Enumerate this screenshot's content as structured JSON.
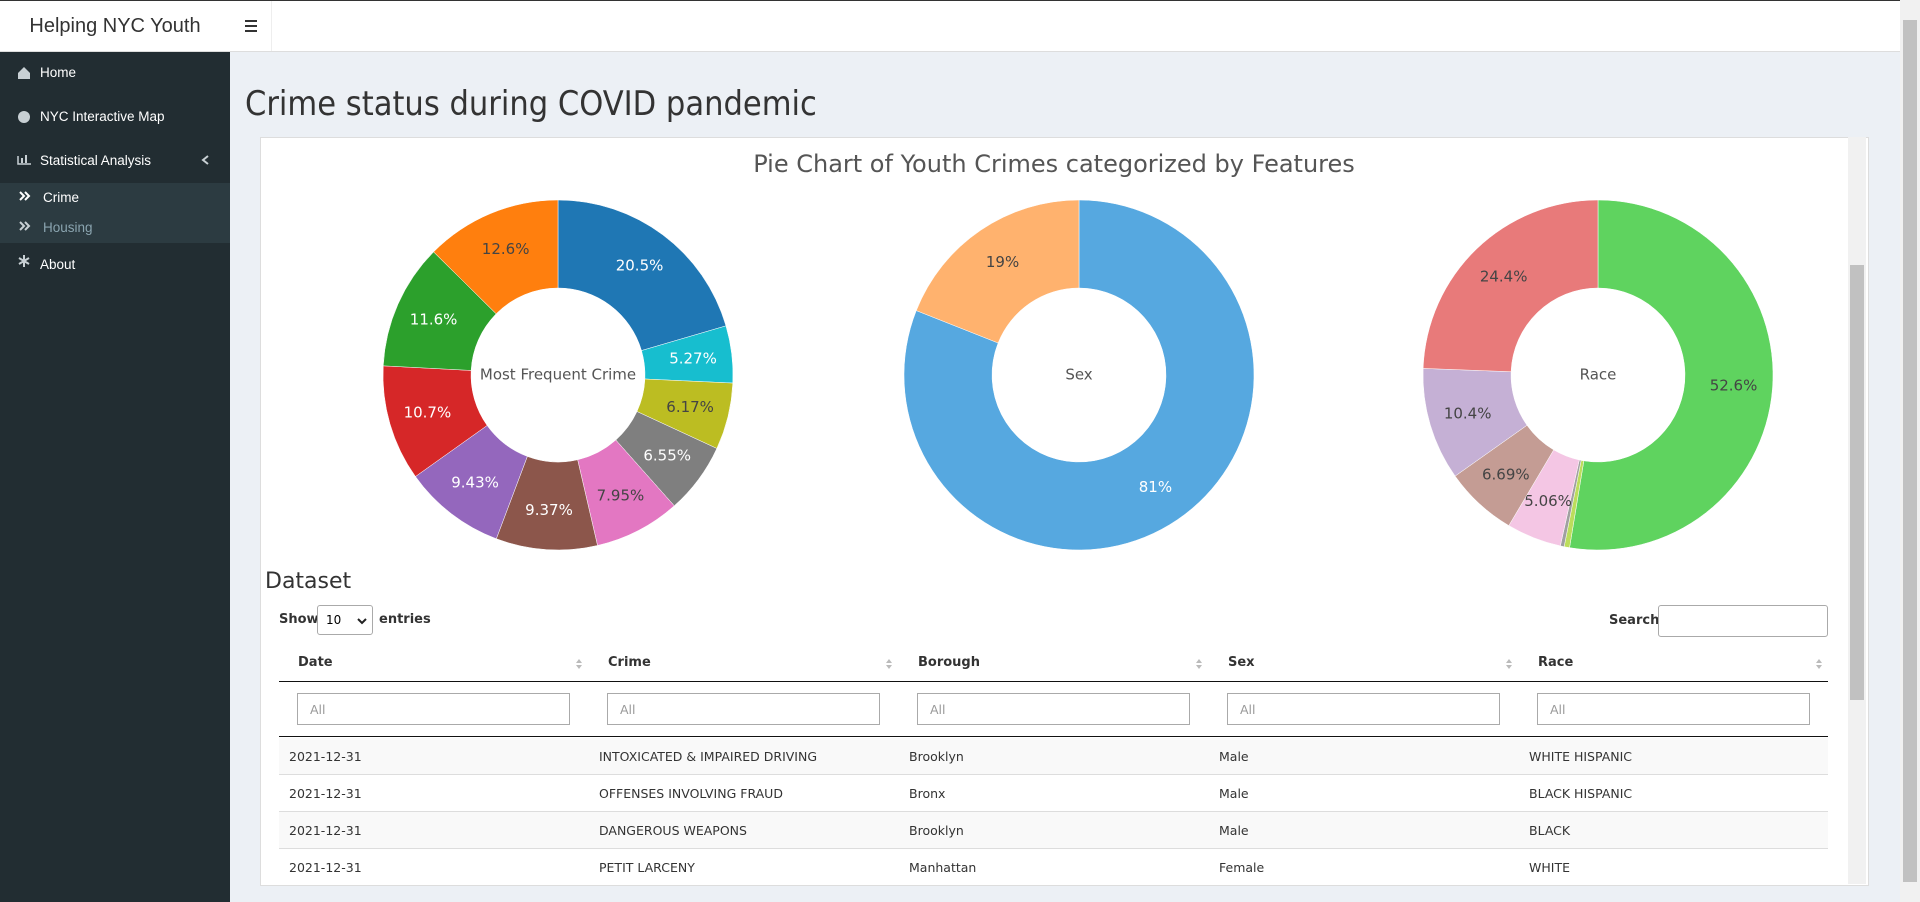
{
  "header": {
    "brand": "Helping NYC Youth"
  },
  "sidebar": {
    "items": [
      "Home",
      "NYC Interactive Map",
      "Statistical Analysis",
      "About"
    ],
    "subitems": [
      "Crime",
      "Housing"
    ]
  },
  "page": {
    "title": "Crime status during COVID pandemic"
  },
  "chart_data": [
    {
      "type": "pie",
      "title": "Pie Chart of Youth Crimes categorized by Features",
      "hole_label": "Most Frequent Crime",
      "values": [
        20.5,
        5.27,
        6.17,
        6.55,
        7.95,
        9.37,
        9.43,
        10.7,
        11.6,
        12.6
      ],
      "value_labels": [
        "20.5%",
        "5.27%",
        "6.17%",
        "6.55%",
        "7.95%",
        "9.37%",
        "9.43%",
        "10.7%",
        "11.6%",
        "12.6%"
      ],
      "colors": [
        "#1f77b4",
        "#17becf",
        "#bcbd22",
        "#7f7f7f",
        "#e377c2",
        "#8c564b",
        "#9467bd",
        "#d62728",
        "#2ca02c",
        "#ff7f0e"
      ]
    },
    {
      "type": "pie",
      "hole_label": "Sex",
      "values": [
        81,
        19
      ],
      "value_labels": [
        "81%",
        "19%"
      ],
      "colors": [
        "#56a8e0",
        "#ffb26e"
      ]
    },
    {
      "type": "pie",
      "hole_label": "Race",
      "values": [
        52.6,
        0.5,
        0.35,
        5.06,
        6.69,
        10.4,
        24.4
      ],
      "value_labels": [
        "52.6%",
        null,
        null,
        "5.06%",
        "6.69%",
        "10.4%",
        "24.4%"
      ],
      "colors": [
        "#5fd35f",
        "#bcdd5c",
        "#a0a0a0",
        "#f4c6e4",
        "#c49c94",
        "#c5b0d5",
        "#e87a7a"
      ]
    }
  ],
  "dataset": {
    "title": "Dataset",
    "show": "Show",
    "page_size": "10",
    "entries": "entries",
    "search": "Search:",
    "filter_placeholder": "All",
    "columns": [
      "Date",
      "Crime",
      "Borough",
      "Sex",
      "Race"
    ],
    "rows": [
      [
        "2021-12-31",
        "INTOXICATED & IMPAIRED DRIVING",
        "Brooklyn",
        "Male",
        "WHITE HISPANIC"
      ],
      [
        "2021-12-31",
        "OFFENSES INVOLVING FRAUD",
        "Bronx",
        "Male",
        "BLACK HISPANIC"
      ],
      [
        "2021-12-31",
        "DANGEROUS WEAPONS",
        "Brooklyn",
        "Male",
        "BLACK"
      ],
      [
        "2021-12-31",
        "PETIT LARCENY",
        "Manhattan",
        "Female",
        "WHITE"
      ]
    ]
  }
}
